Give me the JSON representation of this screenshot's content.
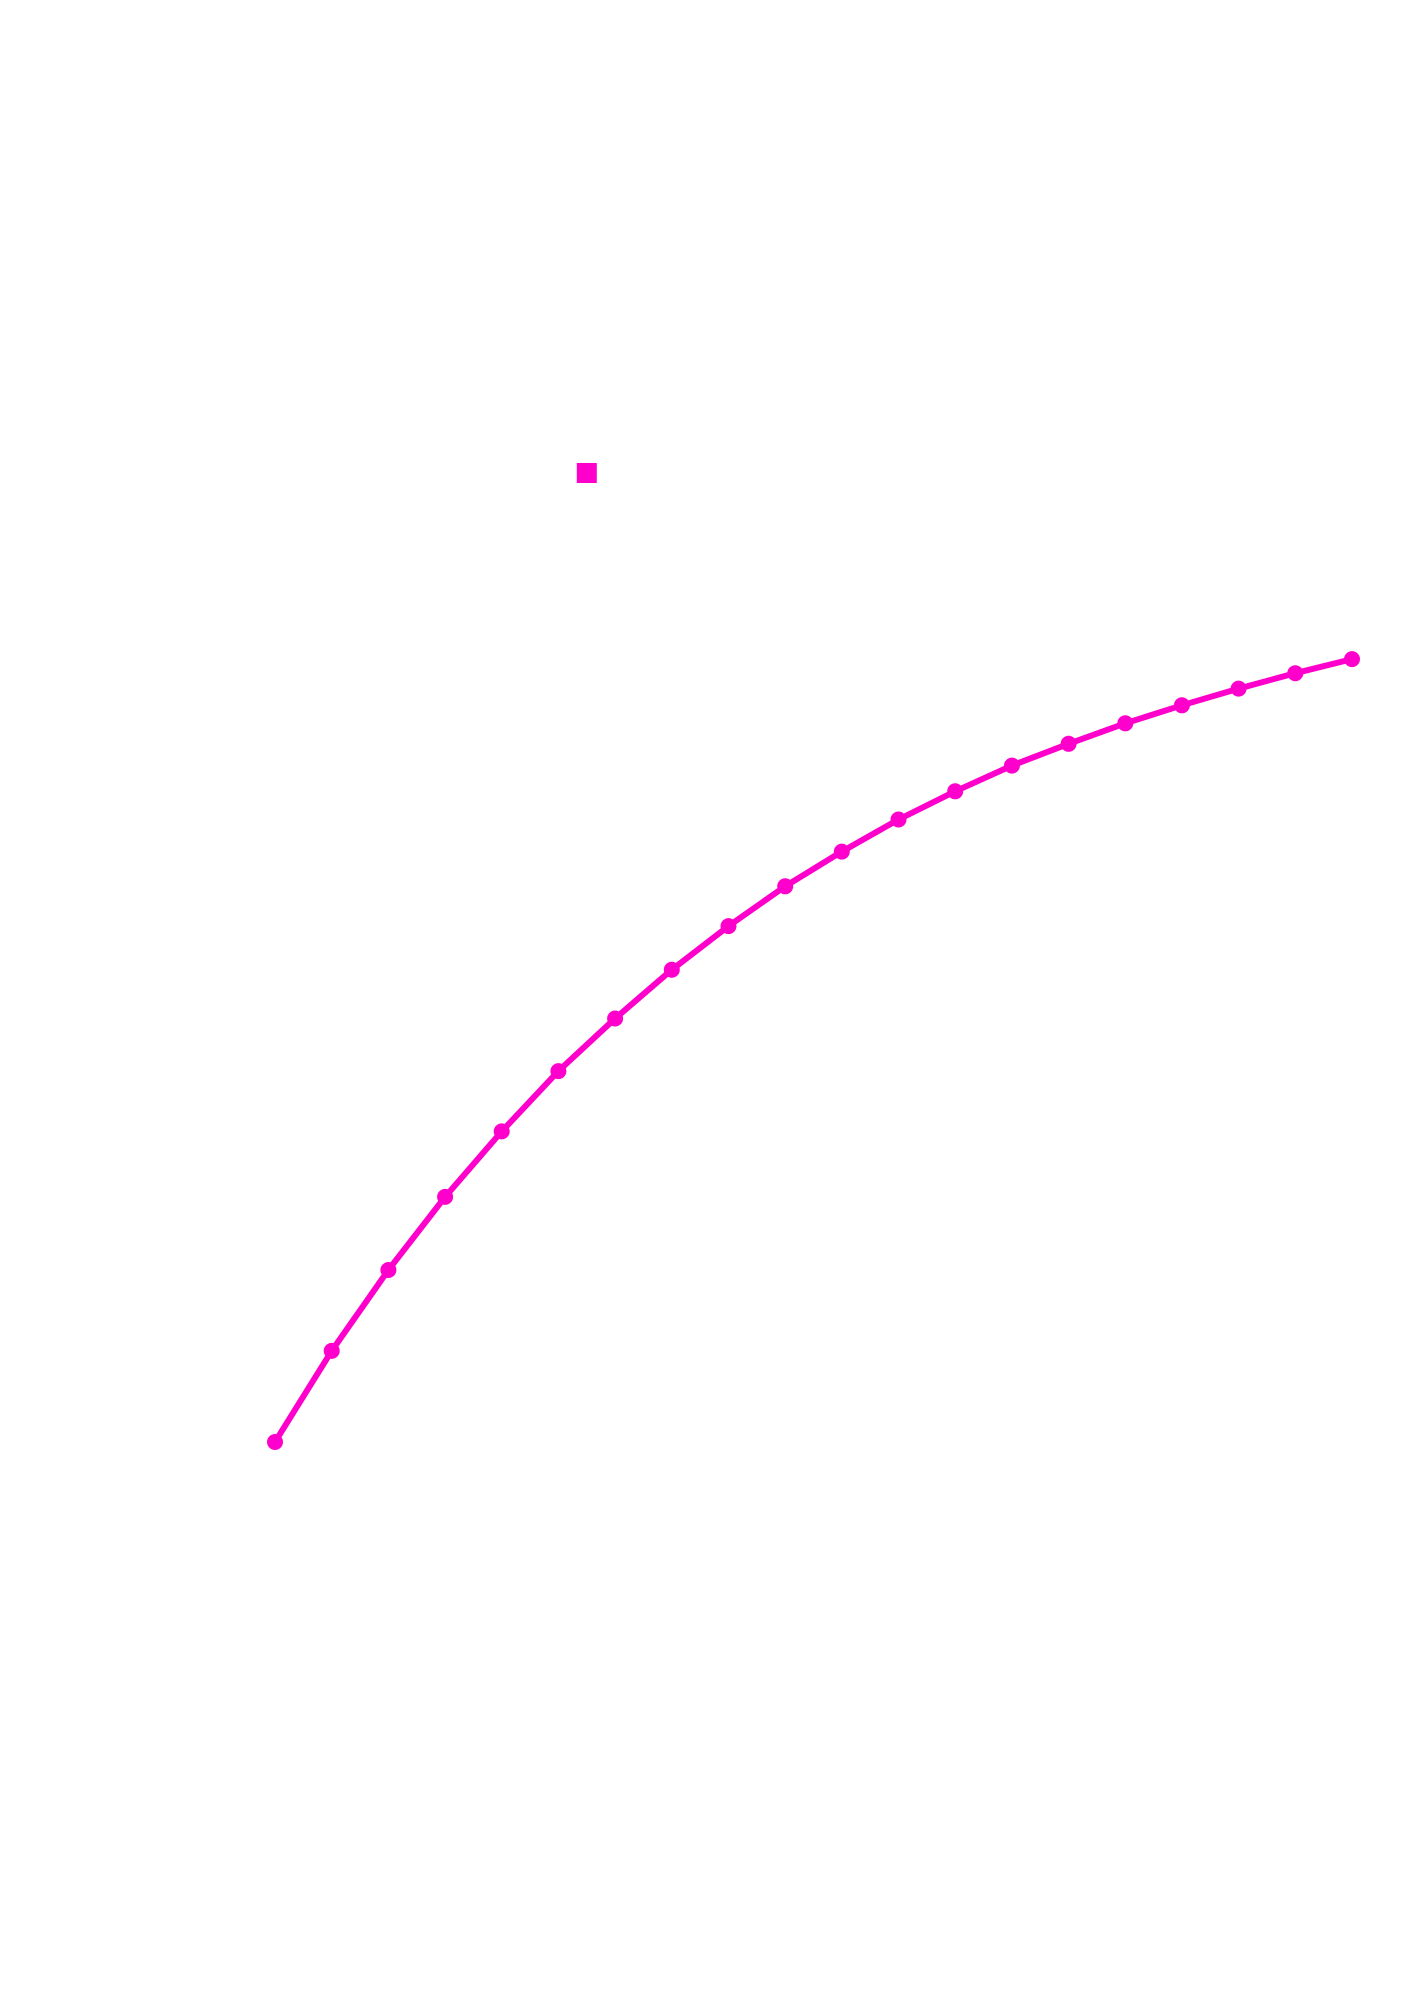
{
  "chart_data": {
    "type": "line",
    "title": "",
    "xlabel": "",
    "ylabel": "",
    "grid": false,
    "axes_visible": false,
    "legend": "none",
    "color": "#ff00cc",
    "x": [
      0,
      1,
      2,
      3,
      4,
      5,
      6,
      7,
      8,
      9,
      10,
      11,
      12,
      13,
      14,
      15,
      16,
      17,
      18,
      19
    ],
    "series": [
      {
        "values": [
          0,
          71,
          134,
          191,
          242,
          289,
          330,
          368,
          402,
          433,
          460,
          485,
          507,
          527,
          544,
          560,
          574,
          587,
          599,
          610
        ]
      }
    ],
    "extra_marker": {
      "shape": "square",
      "x": 5.5,
      "y": 755
    },
    "xlim": [
      0,
      19
    ],
    "ylim": [
      0,
      755
    ]
  }
}
